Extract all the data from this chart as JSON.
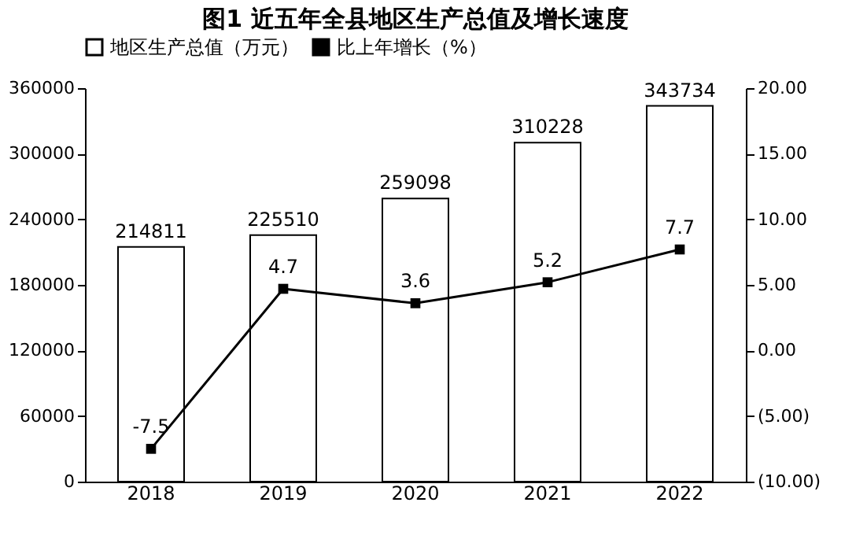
{
  "chart_data": {
    "type": "bar",
    "title": "图1 近五年全县地区生产总值及增长速度",
    "categories": [
      "2018",
      "2019",
      "2020",
      "2021",
      "2022"
    ],
    "series": [
      {
        "name": "地区生产总值（万元）",
        "color": "#ffffff",
        "values": [
          214811,
          225510,
          259098,
          310228,
          343734
        ]
      },
      {
        "name": "比上年增长（%）",
        "type": "line",
        "axis": "y2",
        "color": "#000000",
        "marker": "square",
        "values": [
          -7.5,
          4.7,
          3.6,
          5.2,
          7.7
        ]
      }
    ],
    "ylim": [
      0,
      360000
    ],
    "yticks": [
      0,
      60000,
      120000,
      180000,
      240000,
      300000,
      360000
    ],
    "y2lim": [
      -10,
      20
    ],
    "y2ticks": [
      {
        "value": -10,
        "label": "(10.00)"
      },
      {
        "value": -5,
        "label": "(5.00)"
      },
      {
        "value": 0,
        "label": "0.00"
      },
      {
        "value": 5,
        "label": "5.00"
      },
      {
        "value": 10,
        "label": "10.00"
      },
      {
        "value": 15,
        "label": "15.00"
      },
      {
        "value": 20,
        "label": "20.00"
      }
    ],
    "data_labels": true,
    "legend": "top",
    "grid": false
  }
}
